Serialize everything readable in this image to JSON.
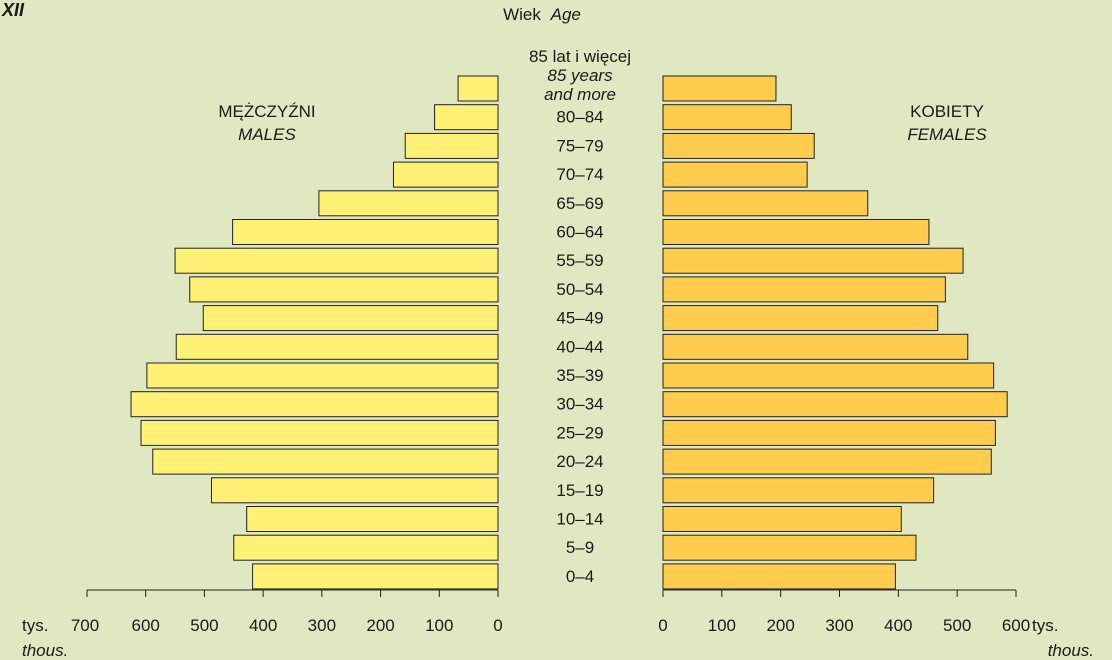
{
  "chart_data": {
    "type": "bar",
    "subtype": "population-pyramid",
    "panel_label": "XII",
    "axis_title": {
      "pl": "Wiek",
      "en": "Age"
    },
    "top_category": {
      "pl": "85 lat i więcej",
      "en_line1": "85 years",
      "en_line2": "and more"
    },
    "categories": [
      "85+",
      "80–84",
      "75–79",
      "70–74",
      "65–69",
      "60–64",
      "55–59",
      "50–54",
      "45–49",
      "40–44",
      "35–39",
      "30–34",
      "25–29",
      "20–24",
      "15–19",
      "10–14",
      "5–9",
      "0–4"
    ],
    "category_labels": [
      "",
      "80–84",
      "75–79",
      "70–74",
      "65–69",
      "60–64",
      "55–59",
      "50–54",
      "45–49",
      "40–44",
      "35–39",
      "30–34",
      "25–29",
      "20–24",
      "15–19",
      "10–14",
      "5–9",
      "0–4"
    ],
    "series": [
      {
        "name": "MĘŻCZYŹNI",
        "name_en": "MALES",
        "color": "#fff176",
        "values": [
          68,
          108,
          158,
          178,
          305,
          452,
          550,
          525,
          502,
          548,
          598,
          625,
          608,
          588,
          488,
          428,
          450,
          418
        ]
      },
      {
        "name": "KOBIETY",
        "name_en": "FEMALES",
        "color": "#ffcc4d",
        "values": [
          192,
          218,
          257,
          245,
          348,
          452,
          510,
          480,
          467,
          518,
          562,
          585,
          565,
          558,
          460,
          405,
          430,
          395
        ]
      }
    ],
    "x_left": {
      "ticks": [
        700,
        600,
        500,
        400,
        300,
        200,
        100,
        0
      ],
      "range": [
        700,
        0
      ],
      "unit_pl": "tys.",
      "unit_en": "thous."
    },
    "x_right": {
      "ticks": [
        0,
        100,
        200,
        300,
        400,
        500,
        600
      ],
      "range": [
        0,
        600
      ],
      "unit_pl": "tys.",
      "unit_en": "thous."
    },
    "grid": false,
    "bar_stroke": "#222222"
  }
}
